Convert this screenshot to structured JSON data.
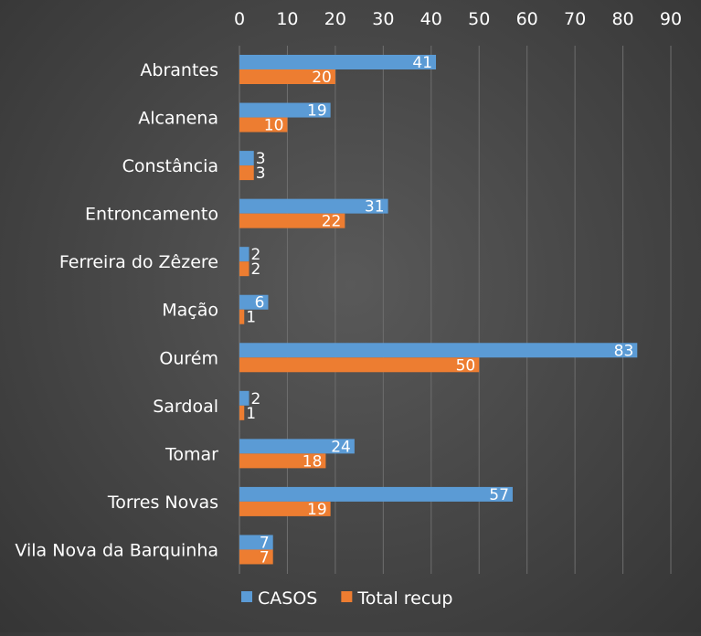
{
  "chart_data": {
    "type": "bar",
    "orientation": "horizontal",
    "categories": [
      "Abrantes",
      "Alcanena",
      "Constância",
      "Entroncamento",
      "Ferreira do Zêzere",
      "Mação",
      "Ourém",
      "Sardoal",
      "Tomar",
      "Torres Novas",
      "Vila Nova da Barquinha"
    ],
    "series": [
      {
        "name": "CASOS",
        "color": "#5b9bd5",
        "values": [
          41,
          19,
          3,
          31,
          2,
          6,
          83,
          2,
          24,
          57,
          7
        ]
      },
      {
        "name": "Total recup",
        "color": "#ed7d31",
        "values": [
          20,
          10,
          3,
          22,
          2,
          1,
          50,
          1,
          18,
          19,
          7
        ]
      }
    ],
    "xlim": [
      0,
      90
    ],
    "xticks": [
      0,
      10,
      20,
      30,
      40,
      50,
      60,
      70,
      80,
      90
    ],
    "x_axis_position": "top",
    "grid": true,
    "legend": "bottom",
    "data_labels": true,
    "title": "",
    "xlabel": "",
    "ylabel": ""
  }
}
